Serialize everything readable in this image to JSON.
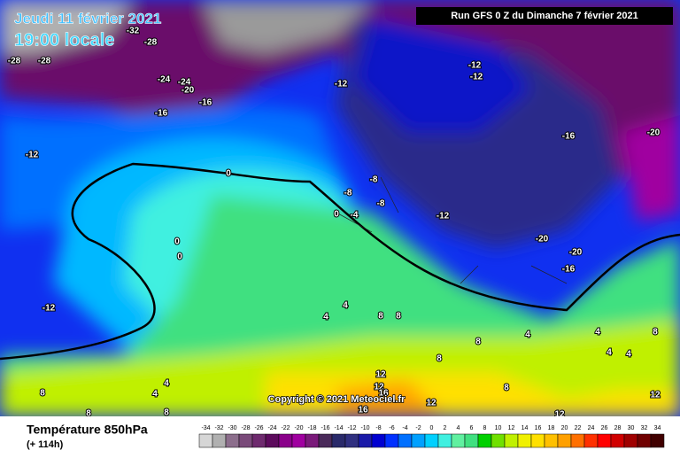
{
  "header": {
    "date": "Jeudi 11 février 2021",
    "time": "19:00 locale",
    "run": "Run GFS 0 Z du Dimanche 7 février 2021"
  },
  "copyright": "Copyright © 2021 Meteociel.fr",
  "footer": {
    "parameter": "Température 850hPa",
    "lead": "(+ 114h)"
  },
  "contour_labels": [
    -32,
    -28,
    -28,
    -28,
    -24,
    -24,
    -20,
    -16,
    -16,
    -12,
    -12,
    -12,
    -12,
    -16,
    -20,
    0,
    -8,
    -8,
    -8,
    -4,
    0,
    -12,
    -20,
    -20,
    -16,
    0,
    0,
    -12,
    4,
    4,
    8,
    8,
    8,
    8,
    4,
    4,
    4,
    8,
    4,
    12,
    12,
    16,
    16,
    12,
    12,
    8,
    12,
    8,
    4,
    4,
    8,
    8
  ],
  "color_scale": [
    {
      "value": -34,
      "color": "#d6d6d6"
    },
    {
      "value": -32,
      "color": "#b0b0b0"
    },
    {
      "value": -30,
      "color": "#8c6e8c"
    },
    {
      "value": -28,
      "color": "#7a4a7a"
    },
    {
      "value": -26,
      "color": "#6e2a6e"
    },
    {
      "value": -24,
      "color": "#5c0a5c"
    },
    {
      "value": -22,
      "color": "#8a008a"
    },
    {
      "value": -20,
      "color": "#a000a0"
    },
    {
      "value": -18,
      "color": "#7a1a7a"
    },
    {
      "value": -16,
      "color": "#4a2a5a"
    },
    {
      "value": -14,
      "color": "#2a2a6a"
    },
    {
      "value": -12,
      "color": "#303080"
    },
    {
      "value": -10,
      "color": "#1a1aa8"
    },
    {
      "value": -8,
      "color": "#0000d0"
    },
    {
      "value": -6,
      "color": "#0030ff"
    },
    {
      "value": -4,
      "color": "#0070ff"
    },
    {
      "value": -2,
      "color": "#00a0ff"
    },
    {
      "value": 0,
      "color": "#00d0ff"
    },
    {
      "value": 2,
      "color": "#40f0e0"
    },
    {
      "value": 4,
      "color": "#60f0a0"
    },
    {
      "value": 6,
      "color": "#40e080"
    },
    {
      "value": 8,
      "color": "#00d000"
    },
    {
      "value": 10,
      "color": "#70e000"
    },
    {
      "value": 12,
      "color": "#c0f000"
    },
    {
      "value": 14,
      "color": "#f0f000"
    },
    {
      "value": 16,
      "color": "#ffe000"
    },
    {
      "value": 18,
      "color": "#ffc000"
    },
    {
      "value": 20,
      "color": "#ffa000"
    },
    {
      "value": 22,
      "color": "#ff7000"
    },
    {
      "value": 24,
      "color": "#ff3000"
    },
    {
      "value": 26,
      "color": "#ff0000"
    },
    {
      "value": 28,
      "color": "#d00000"
    },
    {
      "value": 30,
      "color": "#a00000"
    },
    {
      "value": 32,
      "color": "#700000"
    },
    {
      "value": 34,
      "color": "#400000"
    }
  ]
}
